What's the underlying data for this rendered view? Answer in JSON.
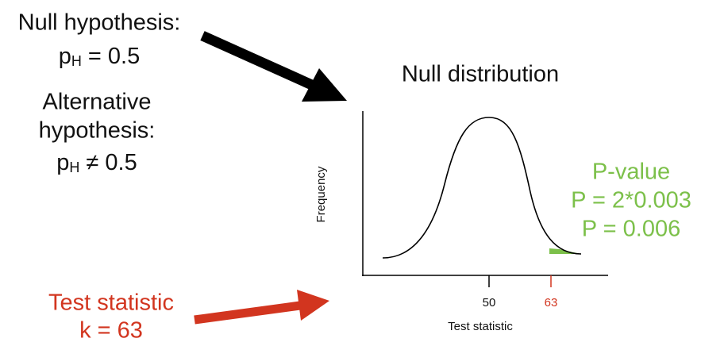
{
  "null_hypothesis": {
    "label": "Null hypothesis:",
    "symbol": "p",
    "subscript": "H",
    "relation": "= 0.5"
  },
  "alternative_hypothesis": {
    "label_lines": [
      "Alternative",
      "hypothesis:"
    ],
    "symbol": "p",
    "subscript": "H",
    "relation": "≠ 0.5"
  },
  "plot": {
    "title": "Null distribution",
    "y_axis_label": "Frequency",
    "x_axis_label": "Test statistic",
    "ticks": [
      50,
      63
    ]
  },
  "p_value": {
    "lines": [
      "P-value",
      "P = 2*0.003",
      "P = 0.006"
    ]
  },
  "test_statistic": {
    "lines": [
      "Test statistic",
      "k = 63"
    ]
  }
}
